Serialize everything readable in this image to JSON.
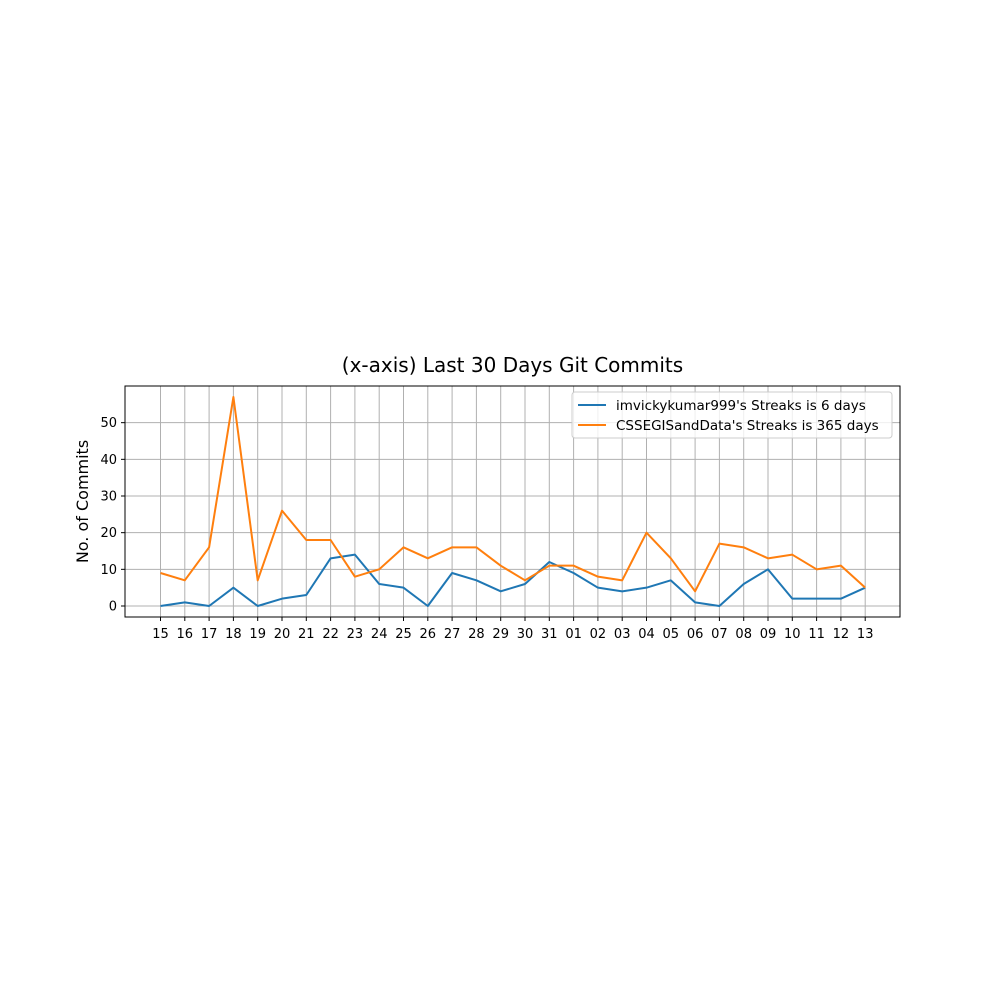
{
  "chart_data": {
    "type": "line",
    "title": "(x-axis) Last 30 Days Git Commits",
    "xlabel": "",
    "ylabel": "No. of Commits",
    "categories": [
      "15",
      "16",
      "17",
      "18",
      "19",
      "20",
      "21",
      "22",
      "23",
      "24",
      "25",
      "26",
      "27",
      "28",
      "29",
      "30",
      "31",
      "01",
      "02",
      "03",
      "04",
      "05",
      "06",
      "07",
      "08",
      "09",
      "10",
      "11",
      "12",
      "13"
    ],
    "yticks": [
      0,
      10,
      20,
      30,
      40,
      50
    ],
    "ylim": [
      -3,
      60
    ],
    "grid": true,
    "legend_position": "top-right",
    "series": [
      {
        "name": "imvickykumar999's Streaks is 6 days",
        "color": "#1f77b4",
        "values": [
          0,
          1,
          0,
          5,
          0,
          2,
          3,
          13,
          14,
          6,
          5,
          0,
          9,
          7,
          4,
          6,
          12,
          9,
          5,
          4,
          5,
          7,
          1,
          0,
          6,
          10,
          2,
          2,
          2,
          5
        ]
      },
      {
        "name": "CSSEGISandData's Streaks is 365 days",
        "color": "#ff7f0e",
        "values": [
          9,
          7,
          16,
          57,
          7,
          26,
          18,
          18,
          8,
          10,
          16,
          13,
          16,
          16,
          11,
          7,
          11,
          11,
          8,
          7,
          20,
          13,
          4,
          17,
          16,
          13,
          14,
          10,
          11,
          5
        ]
      }
    ]
  }
}
